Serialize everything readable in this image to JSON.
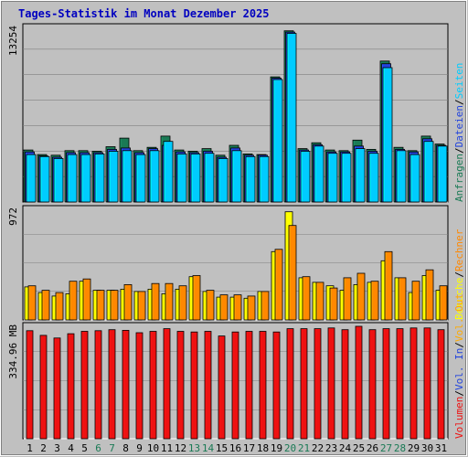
{
  "title": "Tages-Statistik im Monat Dezember 2025",
  "colors": {
    "background": "#c0c0c0",
    "title": "#0000c0",
    "anfragen": "#1a7a55",
    "dateien": "#2244dd",
    "seiten": "#00ccff",
    "besuche": "#ffff00",
    "rechner": "#ff8800",
    "vol_out": "#ffaa00",
    "vol_in": "#2244dd",
    "volumen": "#ee1111",
    "weekend_day": "#1a7a55",
    "weekday": "#000000"
  },
  "chart_data": [
    {
      "type": "bar",
      "panel": "hits",
      "ymax_label": "13254",
      "ylim": [
        0,
        13254
      ],
      "legend_right": [
        {
          "label": "Anfragen",
          "color": "#1a7a55"
        },
        {
          "label": "/",
          "color": "#000000"
        },
        {
          "label": "Dateien",
          "color": "#2244dd"
        },
        {
          "label": "/",
          "color": "#000000"
        },
        {
          "label": "Seiten",
          "color": "#00ccff"
        }
      ],
      "series": [
        {
          "name": "Anfragen",
          "values": [
            3950,
            3600,
            3550,
            3900,
            3900,
            3850,
            4200,
            4850,
            3900,
            4150,
            5000,
            3950,
            3850,
            4050,
            3550,
            4300,
            3650,
            3600,
            9500,
            13000,
            4050,
            4500,
            3950,
            3900,
            4700,
            4000,
            10700,
            4150,
            3900,
            5000,
            4400
          ]
        },
        {
          "name": "Dateien",
          "values": [
            3800,
            3500,
            3400,
            3750,
            3750,
            3750,
            4000,
            4100,
            3750,
            4050,
            4300,
            3800,
            3750,
            3850,
            3400,
            4100,
            3550,
            3550,
            9400,
            12900,
            3950,
            4350,
            3800,
            3800,
            4250,
            3850,
            10500,
            4000,
            3800,
            4800,
            4300
          ]
        },
        {
          "name": "Seiten",
          "values": [
            3600,
            3450,
            3300,
            3600,
            3600,
            3650,
            3850,
            3900,
            3600,
            3900,
            4600,
            3650,
            3650,
            3700,
            3300,
            3900,
            3450,
            3450,
            9300,
            12800,
            3850,
            4250,
            3700,
            3700,
            4050,
            3700,
            10200,
            3900,
            3600,
            4600,
            4250
          ]
        }
      ]
    },
    {
      "type": "bar",
      "panel": "visits",
      "ymax_label": "972",
      "ylim": [
        0,
        972
      ],
      "legend_right": [
        {
          "label": "Besuche",
          "color": "#ffff00"
        },
        {
          "label": "/",
          "color": "#000000"
        },
        {
          "label": "Rechner",
          "color": "#ff8800"
        }
      ],
      "series": [
        {
          "name": "Besuche",
          "values": [
            290,
            240,
            210,
            230,
            340,
            260,
            260,
            270,
            250,
            270,
            230,
            270,
            380,
            250,
            200,
            200,
            190,
            250,
            600,
            950,
            370,
            330,
            300,
            260,
            310,
            330,
            520,
            370,
            240,
            390,
            260
          ]
        },
        {
          "name": "Rechner",
          "values": [
            300,
            260,
            240,
            340,
            360,
            260,
            260,
            310,
            250,
            320,
            320,
            300,
            390,
            260,
            220,
            220,
            210,
            250,
            620,
            830,
            380,
            330,
            280,
            370,
            410,
            340,
            600,
            370,
            340,
            440,
            300
          ]
        }
      ]
    },
    {
      "type": "bar",
      "panel": "volume",
      "ymax_label": "334.96 MB",
      "ylim": [
        0,
        334.96
      ],
      "legend_right": [
        {
          "label": "Volumen",
          "color": "#ee1111"
        },
        {
          "label": "/",
          "color": "#000000"
        },
        {
          "label": "Vol. In",
          "color": "#2244dd"
        },
        {
          "label": "/",
          "color": "#000000"
        },
        {
          "label": "Vol. Out",
          "color": "#ffaa00"
        }
      ],
      "series": [
        {
          "name": "Volumen",
          "values": [
            322,
            308,
            300,
            313,
            320,
            322,
            325,
            323,
            316,
            320,
            328,
            320,
            318,
            320,
            306,
            318,
            320,
            320,
            318,
            328,
            328,
            328,
            330,
            325,
            335,
            325,
            328,
            328,
            330,
            330,
            325
          ]
        }
      ]
    }
  ],
  "x_axis": {
    "labels": [
      "1",
      "2",
      "3",
      "4",
      "5",
      "6",
      "7",
      "8",
      "9",
      "10",
      "11",
      "12",
      "13",
      "14",
      "15",
      "16",
      "17",
      "18",
      "19",
      "20",
      "21",
      "22",
      "23",
      "24",
      "25",
      "26",
      "27",
      "28",
      "29",
      "30",
      "31"
    ],
    "weekend": [
      false,
      false,
      false,
      false,
      false,
      true,
      true,
      false,
      false,
      false,
      false,
      false,
      true,
      true,
      false,
      false,
      false,
      false,
      false,
      true,
      true,
      false,
      false,
      false,
      false,
      false,
      true,
      true,
      false,
      false,
      false
    ]
  }
}
